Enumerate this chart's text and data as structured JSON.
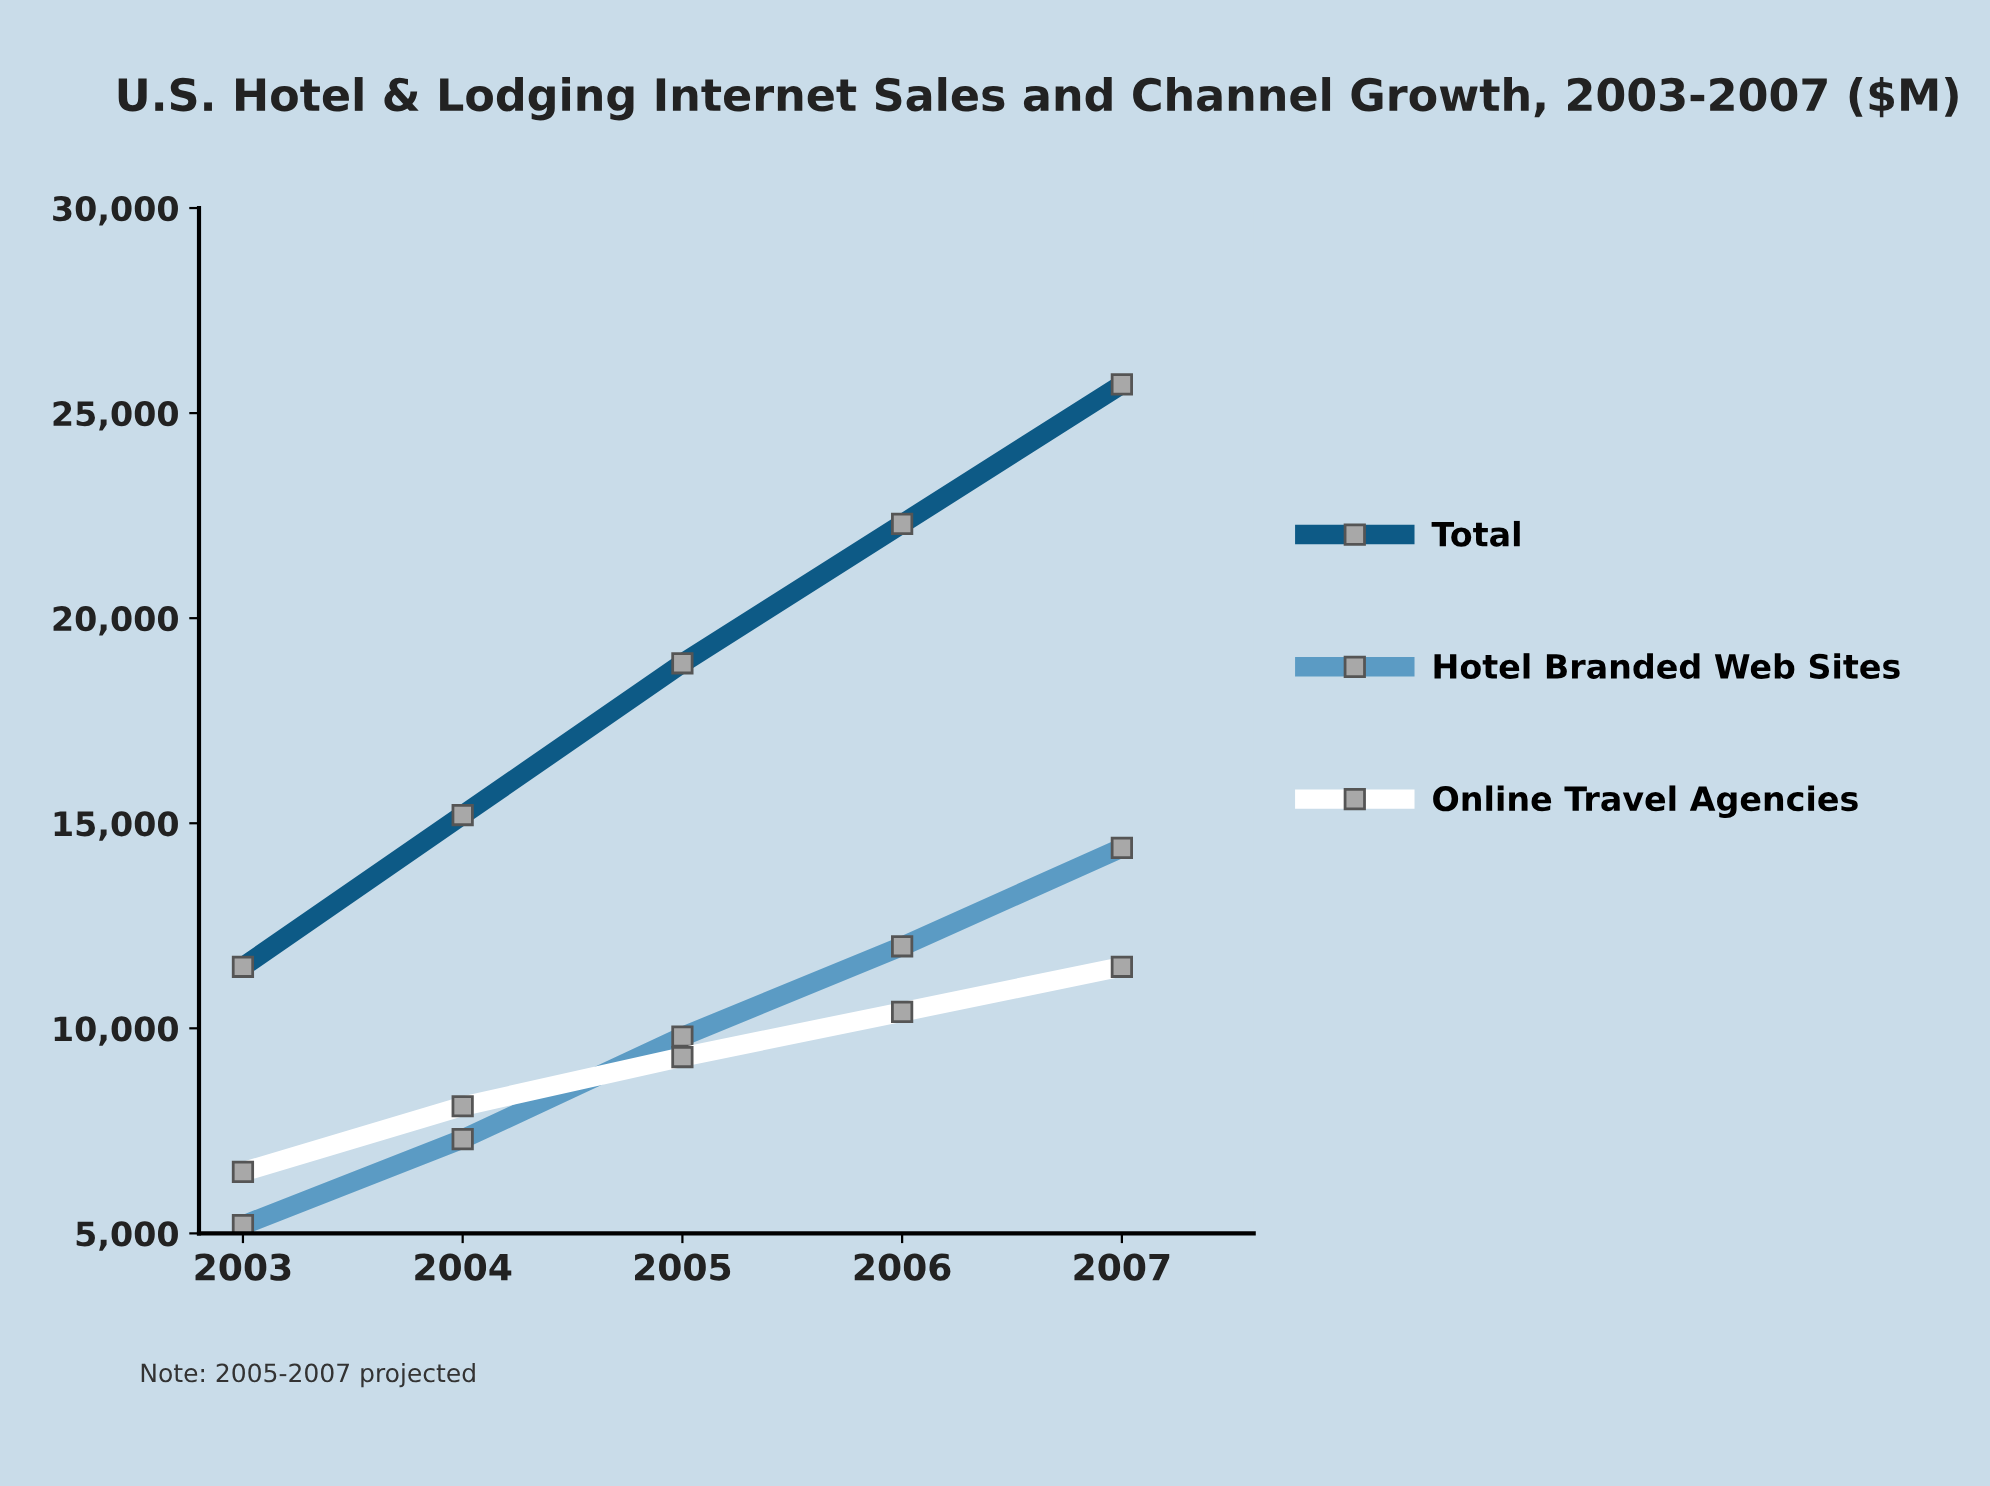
{
  "chart_data": {
    "type": "line",
    "title": "U.S. Hotel & Lodging Internet Sales and Channel Growth, 2003-2007 ($M)",
    "categories": [
      "2003",
      "2004",
      "2005",
      "2006",
      "2007"
    ],
    "series": [
      {
        "name": "Total",
        "color": "#0d5a86",
        "values": [
          11500,
          15200,
          18900,
          22300,
          25700
        ]
      },
      {
        "name": "Hotel Branded Web Sites",
        "color": "#5b9bc4",
        "values": [
          5200,
          7300,
          9800,
          12000,
          14400
        ]
      },
      {
        "name": "Online Travel Agencies",
        "color": "#ffffff",
        "values": [
          6500,
          8100,
          9300,
          10400,
          11500
        ]
      }
    ],
    "ylim": [
      5000,
      30000
    ],
    "yticks": [
      {
        "value": 5000,
        "label": "5,000"
      },
      {
        "value": 10000,
        "label": "10,000"
      },
      {
        "value": 15000,
        "label": "15,000"
      },
      {
        "value": 20000,
        "label": "20,000"
      },
      {
        "value": 25000,
        "label": "25,000"
      },
      {
        "value": 30000,
        "label": "30,000"
      }
    ],
    "grid": false,
    "legend": "right",
    "marker": "square",
    "line_style": "solid",
    "annotations": [
      "Note: 2005-2007 projected"
    ]
  }
}
